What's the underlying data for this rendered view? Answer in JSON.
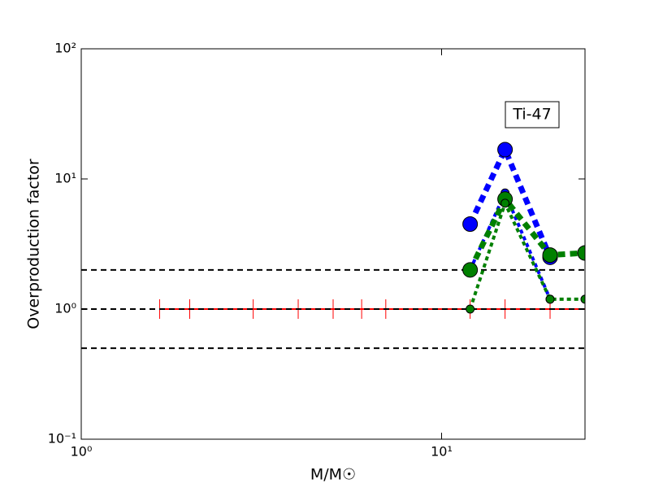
{
  "chart_data": {
    "type": "line",
    "xlabel": "M/M☉",
    "ylabel": "Overproduction factor",
    "annotation": "Ti-47",
    "xscale": "log",
    "yscale": "log",
    "xlim": [
      1,
      25
    ],
    "ylim": [
      0.1,
      100
    ],
    "xticks": [
      {
        "value": 1,
        "label": "10⁰"
      },
      {
        "value": 10,
        "label": "10¹"
      }
    ],
    "yticks": [
      {
        "value": 0.1,
        "label": "10⁻¹"
      },
      {
        "value": 1,
        "label": "10⁰"
      },
      {
        "value": 10,
        "label": "10¹"
      },
      {
        "value": 100,
        "label": "10²"
      }
    ],
    "hlines": [
      2,
      1,
      0.5
    ],
    "series": [
      {
        "color": "#ff0000",
        "linestyle": "solid",
        "marker": "|",
        "x": [
          1.65,
          2,
          3,
          4,
          5,
          6,
          7,
          12,
          15,
          20,
          25
        ],
        "values": [
          1,
          1,
          1,
          1,
          1,
          1,
          1,
          1,
          1,
          1,
          1
        ]
      },
      {
        "color": "#0000ff",
        "linestyle": "dashed",
        "marker": "big",
        "x": [
          12,
          15,
          20
        ],
        "values": [
          4.5,
          16.8,
          2.5
        ]
      },
      {
        "color": "#0000ff",
        "linestyle": "dotted",
        "marker": "small",
        "x": [
          12,
          15,
          20
        ],
        "values": [
          2.0,
          7.8,
          1.19
        ]
      },
      {
        "color": "#008000",
        "linestyle": "dashed",
        "marker": "big",
        "x": [
          12,
          15,
          20,
          25
        ],
        "values": [
          2.0,
          7.0,
          2.6,
          2.7
        ]
      },
      {
        "color": "#008000",
        "linestyle": "dotted",
        "marker": "small",
        "x": [
          12,
          15,
          20,
          25
        ],
        "values": [
          1.0,
          6.5,
          1.19,
          1.19
        ]
      }
    ]
  }
}
